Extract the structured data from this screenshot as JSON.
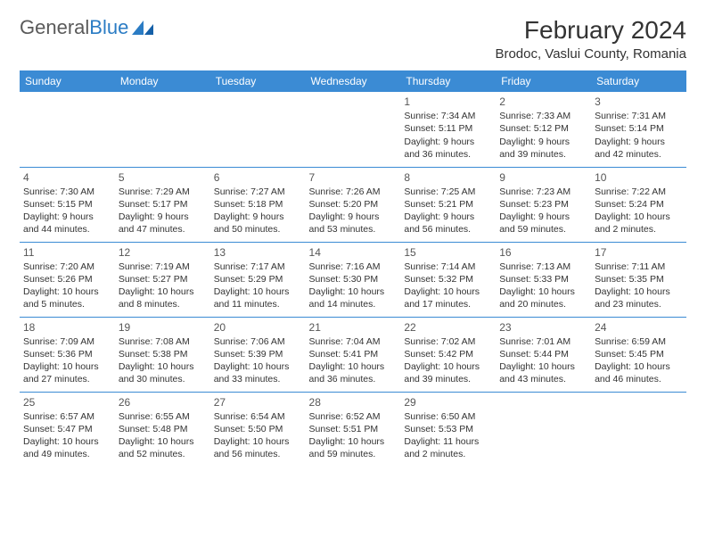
{
  "brand": {
    "name_part1": "General",
    "name_part2": "Blue"
  },
  "title": "February 2024",
  "location": "Brodoc, Vaslui County, Romania",
  "colors": {
    "header_bg": "#3b8bd4",
    "header_text": "#ffffff",
    "border": "#3b8bd4",
    "brand_gray": "#5a5a5a",
    "brand_blue": "#2b7cc4",
    "cell_text": "#333333"
  },
  "day_headers": [
    "Sunday",
    "Monday",
    "Tuesday",
    "Wednesday",
    "Thursday",
    "Friday",
    "Saturday"
  ],
  "weeks": [
    [
      null,
      null,
      null,
      null,
      {
        "n": "1",
        "sr": "Sunrise: 7:34 AM",
        "ss": "Sunset: 5:11 PM",
        "d1": "Daylight: 9 hours",
        "d2": "and 36 minutes."
      },
      {
        "n": "2",
        "sr": "Sunrise: 7:33 AM",
        "ss": "Sunset: 5:12 PM",
        "d1": "Daylight: 9 hours",
        "d2": "and 39 minutes."
      },
      {
        "n": "3",
        "sr": "Sunrise: 7:31 AM",
        "ss": "Sunset: 5:14 PM",
        "d1": "Daylight: 9 hours",
        "d2": "and 42 minutes."
      }
    ],
    [
      {
        "n": "4",
        "sr": "Sunrise: 7:30 AM",
        "ss": "Sunset: 5:15 PM",
        "d1": "Daylight: 9 hours",
        "d2": "and 44 minutes."
      },
      {
        "n": "5",
        "sr": "Sunrise: 7:29 AM",
        "ss": "Sunset: 5:17 PM",
        "d1": "Daylight: 9 hours",
        "d2": "and 47 minutes."
      },
      {
        "n": "6",
        "sr": "Sunrise: 7:27 AM",
        "ss": "Sunset: 5:18 PM",
        "d1": "Daylight: 9 hours",
        "d2": "and 50 minutes."
      },
      {
        "n": "7",
        "sr": "Sunrise: 7:26 AM",
        "ss": "Sunset: 5:20 PM",
        "d1": "Daylight: 9 hours",
        "d2": "and 53 minutes."
      },
      {
        "n": "8",
        "sr": "Sunrise: 7:25 AM",
        "ss": "Sunset: 5:21 PM",
        "d1": "Daylight: 9 hours",
        "d2": "and 56 minutes."
      },
      {
        "n": "9",
        "sr": "Sunrise: 7:23 AM",
        "ss": "Sunset: 5:23 PM",
        "d1": "Daylight: 9 hours",
        "d2": "and 59 minutes."
      },
      {
        "n": "10",
        "sr": "Sunrise: 7:22 AM",
        "ss": "Sunset: 5:24 PM",
        "d1": "Daylight: 10 hours",
        "d2": "and 2 minutes."
      }
    ],
    [
      {
        "n": "11",
        "sr": "Sunrise: 7:20 AM",
        "ss": "Sunset: 5:26 PM",
        "d1": "Daylight: 10 hours",
        "d2": "and 5 minutes."
      },
      {
        "n": "12",
        "sr": "Sunrise: 7:19 AM",
        "ss": "Sunset: 5:27 PM",
        "d1": "Daylight: 10 hours",
        "d2": "and 8 minutes."
      },
      {
        "n": "13",
        "sr": "Sunrise: 7:17 AM",
        "ss": "Sunset: 5:29 PM",
        "d1": "Daylight: 10 hours",
        "d2": "and 11 minutes."
      },
      {
        "n": "14",
        "sr": "Sunrise: 7:16 AM",
        "ss": "Sunset: 5:30 PM",
        "d1": "Daylight: 10 hours",
        "d2": "and 14 minutes."
      },
      {
        "n": "15",
        "sr": "Sunrise: 7:14 AM",
        "ss": "Sunset: 5:32 PM",
        "d1": "Daylight: 10 hours",
        "d2": "and 17 minutes."
      },
      {
        "n": "16",
        "sr": "Sunrise: 7:13 AM",
        "ss": "Sunset: 5:33 PM",
        "d1": "Daylight: 10 hours",
        "d2": "and 20 minutes."
      },
      {
        "n": "17",
        "sr": "Sunrise: 7:11 AM",
        "ss": "Sunset: 5:35 PM",
        "d1": "Daylight: 10 hours",
        "d2": "and 23 minutes."
      }
    ],
    [
      {
        "n": "18",
        "sr": "Sunrise: 7:09 AM",
        "ss": "Sunset: 5:36 PM",
        "d1": "Daylight: 10 hours",
        "d2": "and 27 minutes."
      },
      {
        "n": "19",
        "sr": "Sunrise: 7:08 AM",
        "ss": "Sunset: 5:38 PM",
        "d1": "Daylight: 10 hours",
        "d2": "and 30 minutes."
      },
      {
        "n": "20",
        "sr": "Sunrise: 7:06 AM",
        "ss": "Sunset: 5:39 PM",
        "d1": "Daylight: 10 hours",
        "d2": "and 33 minutes."
      },
      {
        "n": "21",
        "sr": "Sunrise: 7:04 AM",
        "ss": "Sunset: 5:41 PM",
        "d1": "Daylight: 10 hours",
        "d2": "and 36 minutes."
      },
      {
        "n": "22",
        "sr": "Sunrise: 7:02 AM",
        "ss": "Sunset: 5:42 PM",
        "d1": "Daylight: 10 hours",
        "d2": "and 39 minutes."
      },
      {
        "n": "23",
        "sr": "Sunrise: 7:01 AM",
        "ss": "Sunset: 5:44 PM",
        "d1": "Daylight: 10 hours",
        "d2": "and 43 minutes."
      },
      {
        "n": "24",
        "sr": "Sunrise: 6:59 AM",
        "ss": "Sunset: 5:45 PM",
        "d1": "Daylight: 10 hours",
        "d2": "and 46 minutes."
      }
    ],
    [
      {
        "n": "25",
        "sr": "Sunrise: 6:57 AM",
        "ss": "Sunset: 5:47 PM",
        "d1": "Daylight: 10 hours",
        "d2": "and 49 minutes."
      },
      {
        "n": "26",
        "sr": "Sunrise: 6:55 AM",
        "ss": "Sunset: 5:48 PM",
        "d1": "Daylight: 10 hours",
        "d2": "and 52 minutes."
      },
      {
        "n": "27",
        "sr": "Sunrise: 6:54 AM",
        "ss": "Sunset: 5:50 PM",
        "d1": "Daylight: 10 hours",
        "d2": "and 56 minutes."
      },
      {
        "n": "28",
        "sr": "Sunrise: 6:52 AM",
        "ss": "Sunset: 5:51 PM",
        "d1": "Daylight: 10 hours",
        "d2": "and 59 minutes."
      },
      {
        "n": "29",
        "sr": "Sunrise: 6:50 AM",
        "ss": "Sunset: 5:53 PM",
        "d1": "Daylight: 11 hours",
        "d2": "and 2 minutes."
      },
      null,
      null
    ]
  ]
}
